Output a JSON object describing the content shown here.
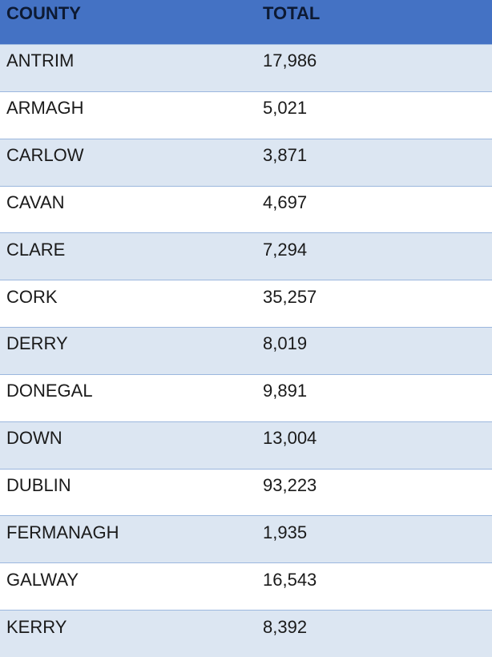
{
  "table": {
    "header": [
      "COUNTY",
      "TOTAL"
    ],
    "rows": [
      [
        "ANTRIM",
        "17,986"
      ],
      [
        "ARMAGH",
        "5,021"
      ],
      [
        "CARLOW",
        "3,871"
      ],
      [
        "CAVAN",
        "4,697"
      ],
      [
        "CLARE",
        "7,294"
      ],
      [
        "CORK",
        "35,257"
      ],
      [
        "DERRY",
        "8,019"
      ],
      [
        "DONEGAL",
        "9,891"
      ],
      [
        "DOWN",
        "13,004"
      ],
      [
        "DUBLIN",
        "93,223"
      ],
      [
        "FERMANAGH",
        "1,935"
      ],
      [
        "GALWAY",
        "16,543"
      ],
      [
        "KERRY",
        "8,392"
      ]
    ]
  }
}
